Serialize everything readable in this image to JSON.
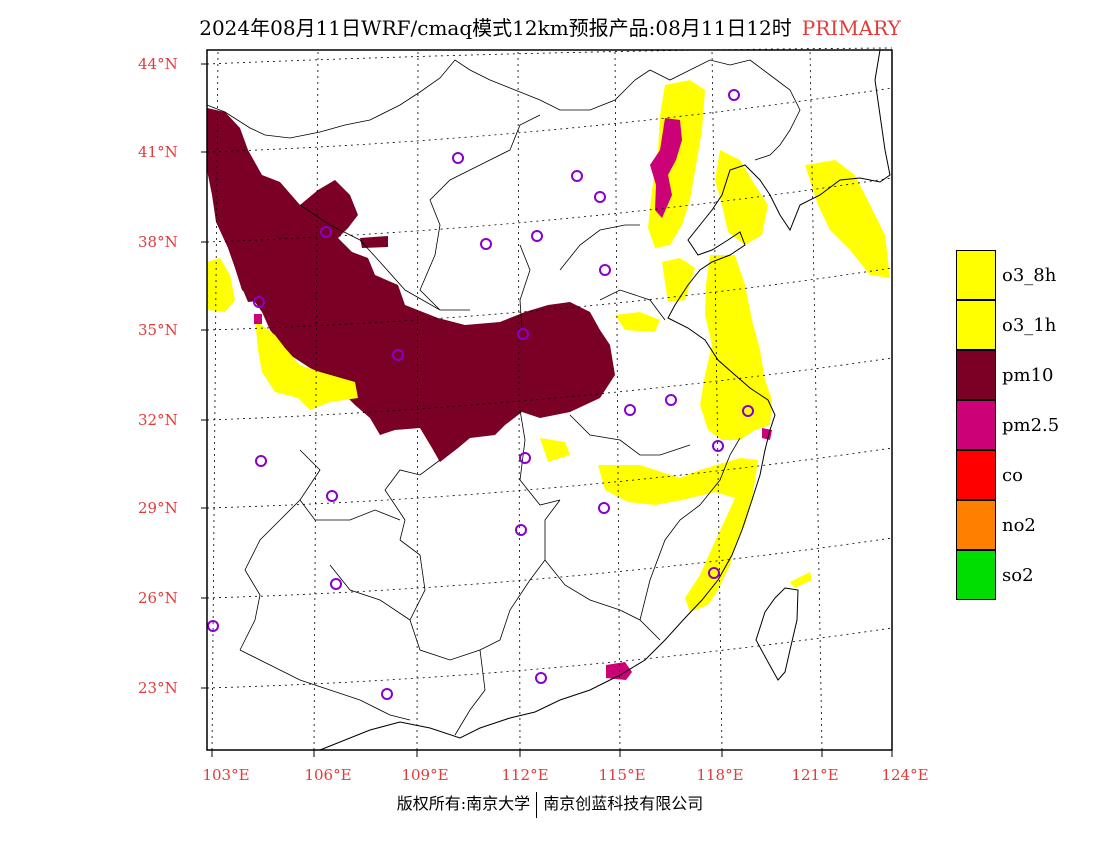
{
  "title": {
    "main": "2024年08月11日WRF/cmaq模式12km预报产品:08月11日12时",
    "tag": "PRIMARY"
  },
  "colors": {
    "o3_8h": "#ffff00",
    "o3_1h": "#ffff00",
    "pm10": "#7a0026",
    "pm2_5": "#cc0077",
    "co": "#ff0000",
    "no2": "#ff7f00",
    "so2": "#00dd00",
    "axis_label": "#e33a3a",
    "station": "#8800cc"
  },
  "axes": {
    "lat_labels": [
      "44°N",
      "41°N",
      "38°N",
      "35°N",
      "32°N",
      "29°N",
      "26°N",
      "23°N"
    ],
    "lon_labels": [
      "103°E",
      "106°E",
      "109°E",
      "112°E",
      "115°E",
      "118°E",
      "121°E",
      "124°E"
    ]
  },
  "legend": [
    {
      "key": "o3_8h",
      "label": "o3_8h",
      "color": "#ffff00"
    },
    {
      "key": "o3_1h",
      "label": "o3_1h",
      "color": "#ffff00"
    },
    {
      "key": "pm10",
      "label": "pm10",
      "color": "#7a0026"
    },
    {
      "key": "pm2_5",
      "label": "pm2.5",
      "color": "#cc0077"
    },
    {
      "key": "co",
      "label": "co",
      "color": "#ff0000"
    },
    {
      "key": "no2",
      "label": "no2",
      "color": "#ff7f00"
    },
    {
      "key": "so2",
      "label": "so2",
      "color": "#00dd00"
    }
  ],
  "footer": {
    "left": "版权所有:南京大学",
    "right": "南京创蓝科技有限公司"
  }
}
